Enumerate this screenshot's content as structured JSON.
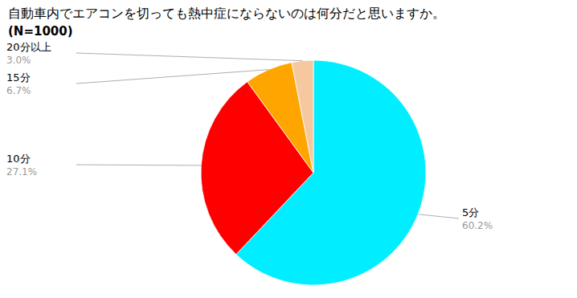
{
  "chart_data": {
    "type": "pie",
    "title": "自動車内でエアコンを切っても熱中症にならないのは何分だと思いますか。",
    "subtitle": "(N=1000)",
    "categories": [
      "5分",
      "10分",
      "15分",
      "20分以上"
    ],
    "values": [
      60.2,
      27.1,
      6.7,
      3.0
    ],
    "value_labels": [
      "60.2%",
      "27.1%",
      "6.7%",
      "3.0%"
    ],
    "colors": [
      "#00EEFF",
      "#FF0000",
      "#FFA500",
      "#F5C8A0"
    ],
    "data_labels": true
  }
}
